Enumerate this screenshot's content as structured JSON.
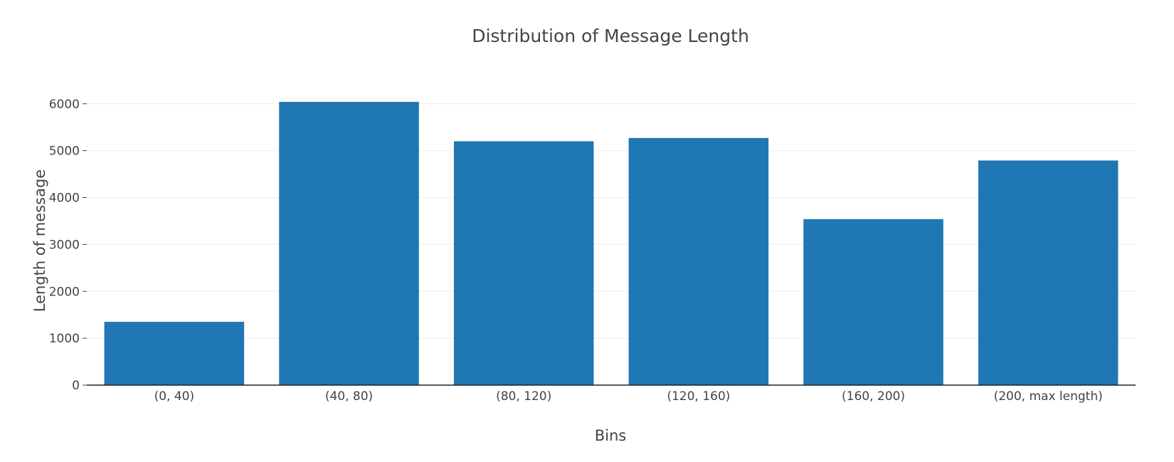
{
  "chart_data": {
    "type": "bar",
    "title": "Distribution of Message Length",
    "xlabel": "Bins",
    "ylabel": "Length of message",
    "categories": [
      "(0, 40)",
      "(40, 80)",
      "(80, 120)",
      "(120, 160)",
      "(160, 200)",
      "(200, max length)"
    ],
    "values": [
      1350,
      6040,
      5200,
      5270,
      3540,
      4790
    ],
    "ylim": [
      0,
      6300
    ],
    "yticks": [
      0,
      1000,
      2000,
      3000,
      4000,
      5000,
      6000
    ],
    "grid": true,
    "bar_color": "#1f77b4"
  }
}
